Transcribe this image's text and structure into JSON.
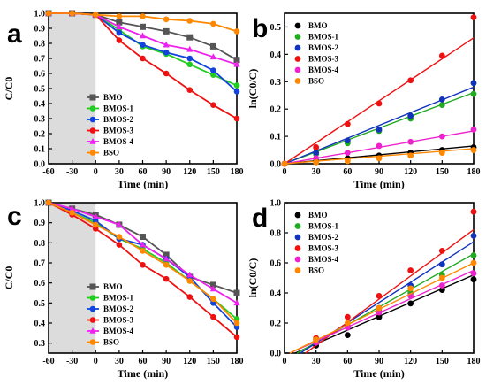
{
  "chart_data": [
    {
      "panel": "a",
      "type": "line",
      "xlabel": "Time (min)",
      "ylabel": "C/C0",
      "xlim": [
        -60,
        180
      ],
      "ylim": [
        0.0,
        1.0
      ],
      "xticks": [
        -60,
        -30,
        0,
        30,
        60,
        90,
        120,
        150,
        180
      ],
      "yticks": [
        0.0,
        0.1,
        0.2,
        0.3,
        0.4,
        0.5,
        0.6,
        0.7,
        0.8,
        0.9,
        1.0
      ],
      "dark_region": [
        -60,
        0
      ],
      "legend_position": "lower-center",
      "x": [
        -60,
        -30,
        0,
        30,
        60,
        90,
        120,
        150,
        180
      ],
      "series": [
        {
          "name": "BMO",
          "color": "#555555",
          "marker": "square",
          "values": [
            1.0,
            1.0,
            0.99,
            0.94,
            0.91,
            0.88,
            0.84,
            0.78,
            0.69
          ]
        },
        {
          "name": "BMOS-1",
          "color": "#22cc22",
          "marker": "circle",
          "values": [
            1.0,
            1.0,
            0.99,
            0.89,
            0.78,
            0.73,
            0.66,
            0.59,
            0.52
          ]
        },
        {
          "name": "BMOS-2",
          "color": "#1144dd",
          "marker": "circle",
          "values": [
            1.0,
            1.0,
            0.99,
            0.87,
            0.79,
            0.74,
            0.7,
            0.62,
            0.48
          ]
        },
        {
          "name": "BMOS-3",
          "color": "#ee1111",
          "marker": "circle",
          "values": [
            1.0,
            1.0,
            0.99,
            0.82,
            0.7,
            0.6,
            0.49,
            0.39,
            0.3
          ]
        },
        {
          "name": "BMOS-4",
          "color": "#ee22ee",
          "marker": "triangle",
          "values": [
            1.0,
            1.0,
            0.99,
            0.91,
            0.85,
            0.79,
            0.76,
            0.71,
            0.66
          ]
        },
        {
          "name": "BSO",
          "color": "#ff8800",
          "marker": "circle",
          "values": [
            1.0,
            1.0,
            0.99,
            0.98,
            0.98,
            0.96,
            0.95,
            0.93,
            0.88
          ]
        }
      ]
    },
    {
      "panel": "b",
      "type": "scatter",
      "xlabel": "Time (min)",
      "ylabel": "ln(C0/C)",
      "xlim": [
        0,
        180
      ],
      "ylim": [
        0.0,
        0.55
      ],
      "xticks": [
        0,
        30,
        60,
        90,
        120,
        150,
        180
      ],
      "yticks": [
        0.0,
        0.1,
        0.2,
        0.3,
        0.4,
        0.5
      ],
      "legend_position": "top-left",
      "x": [
        0,
        30,
        60,
        90,
        120,
        150,
        180
      ],
      "series": [
        {
          "name": "BMO",
          "color": "#000000",
          "values": [
            0,
            0.01,
            0.02,
            0.03,
            0.04,
            0.05,
            0.06
          ],
          "fit_end": 0.065
        },
        {
          "name": "BMOS-1",
          "color": "#22aa22",
          "values": [
            0,
            0.035,
            0.075,
            0.12,
            0.165,
            0.215,
            0.255
          ],
          "fit_end": 0.26
        },
        {
          "name": "BMOS-2",
          "color": "#1133bb",
          "values": [
            0,
            0.04,
            0.085,
            0.125,
            0.175,
            0.235,
            0.295
          ],
          "fit_end": 0.28
        },
        {
          "name": "BMOS-3",
          "color": "#ee1111",
          "values": [
            0,
            0.06,
            0.145,
            0.22,
            0.305,
            0.395,
            0.535
          ],
          "fit_end": 0.46
        },
        {
          "name": "BMOS-4",
          "color": "#ee22cc",
          "values": [
            0,
            0.02,
            0.04,
            0.065,
            0.08,
            0.1,
            0.125
          ],
          "fit_end": 0.12
        },
        {
          "name": "BSO",
          "color": "#ff8800",
          "values": [
            0,
            0.005,
            0.01,
            0.02,
            0.03,
            0.04,
            0.05
          ],
          "fit_end": 0.055
        }
      ]
    },
    {
      "panel": "c",
      "type": "line",
      "xlabel": "Time (min)",
      "ylabel": "C/C0",
      "xlim": [
        -60,
        180
      ],
      "ylim": [
        0.25,
        1.0
      ],
      "xticks": [
        -60,
        -30,
        0,
        30,
        60,
        90,
        120,
        150,
        180
      ],
      "yticks": [
        0.3,
        0.4,
        0.5,
        0.6,
        0.7,
        0.8,
        0.9,
        1.0
      ],
      "dark_region": [
        -60,
        0
      ],
      "legend_position": "lower-center",
      "x": [
        -60,
        -30,
        0,
        30,
        60,
        90,
        120,
        150,
        180
      ],
      "series": [
        {
          "name": "BMO",
          "color": "#555555",
          "marker": "square",
          "values": [
            1.0,
            0.97,
            0.94,
            0.89,
            0.83,
            0.74,
            0.63,
            0.59,
            0.55
          ]
        },
        {
          "name": "BMOS-1",
          "color": "#22cc22",
          "marker": "circle",
          "values": [
            1.0,
            0.95,
            0.9,
            0.82,
            0.77,
            0.7,
            0.61,
            0.52,
            0.42
          ]
        },
        {
          "name": "BMOS-2",
          "color": "#1144dd",
          "marker": "circle",
          "values": [
            1.0,
            0.96,
            0.91,
            0.82,
            0.79,
            0.72,
            0.63,
            0.5,
            0.38
          ]
        },
        {
          "name": "BMOS-3",
          "color": "#ee1111",
          "marker": "circle",
          "values": [
            1.0,
            0.94,
            0.87,
            0.79,
            0.69,
            0.62,
            0.53,
            0.43,
            0.33
          ]
        },
        {
          "name": "BMOS-4",
          "color": "#ee22ee",
          "marker": "triangle",
          "values": [
            1.0,
            0.97,
            0.93,
            0.89,
            0.79,
            0.72,
            0.64,
            0.57,
            0.5
          ]
        },
        {
          "name": "BSO",
          "color": "#ff8800",
          "marker": "circle",
          "values": [
            1.0,
            0.95,
            0.89,
            0.83,
            0.76,
            0.69,
            0.61,
            0.52,
            0.4
          ]
        }
      ]
    },
    {
      "panel": "d",
      "type": "scatter",
      "xlabel": "Time (min)",
      "ylabel": "ln(C0/C)",
      "xlim": [
        0,
        180
      ],
      "ylim": [
        0.0,
        1.0
      ],
      "xticks": [
        0,
        30,
        60,
        90,
        120,
        150,
        180
      ],
      "yticks": [
        0.0,
        0.2,
        0.4,
        0.6,
        0.8,
        1.0
      ],
      "legend_position": "top-left",
      "x": [
        30,
        60,
        90,
        120,
        150,
        180
      ],
      "series": [
        {
          "name": "BMO",
          "color": "#000000",
          "values": [
            0.05,
            0.12,
            0.24,
            0.33,
            0.42,
            0.49
          ],
          "fit": [
            10,
            0.0,
            180,
            0.52
          ]
        },
        {
          "name": "BMOS-1",
          "color": "#22aa22",
          "values": [
            0.08,
            0.18,
            0.28,
            0.4,
            0.52,
            0.65
          ],
          "fit": [
            12,
            0.0,
            180,
            0.66
          ]
        },
        {
          "name": "BMOS-2",
          "color": "#1133bb",
          "values": [
            0.09,
            0.18,
            0.3,
            0.45,
            0.59,
            0.78
          ],
          "fit": [
            15,
            0.0,
            180,
            0.74
          ]
        },
        {
          "name": "BMOS-3",
          "color": "#ee1111",
          "values": [
            0.1,
            0.24,
            0.38,
            0.55,
            0.68,
            0.94
          ],
          "fit": [
            20,
            0.0,
            180,
            0.82
          ]
        },
        {
          "name": "BMOS-4",
          "color": "#ee22cc",
          "values": [
            0.07,
            0.17,
            0.27,
            0.38,
            0.45,
            0.53
          ],
          "fit": [
            5,
            0.0,
            180,
            0.55
          ]
        },
        {
          "name": "BSO",
          "color": "#ff8800",
          "values": [
            0.09,
            0.2,
            0.3,
            0.43,
            0.5,
            0.6
          ],
          "fit": [
            5,
            0.0,
            180,
            0.6
          ]
        }
      ]
    }
  ]
}
